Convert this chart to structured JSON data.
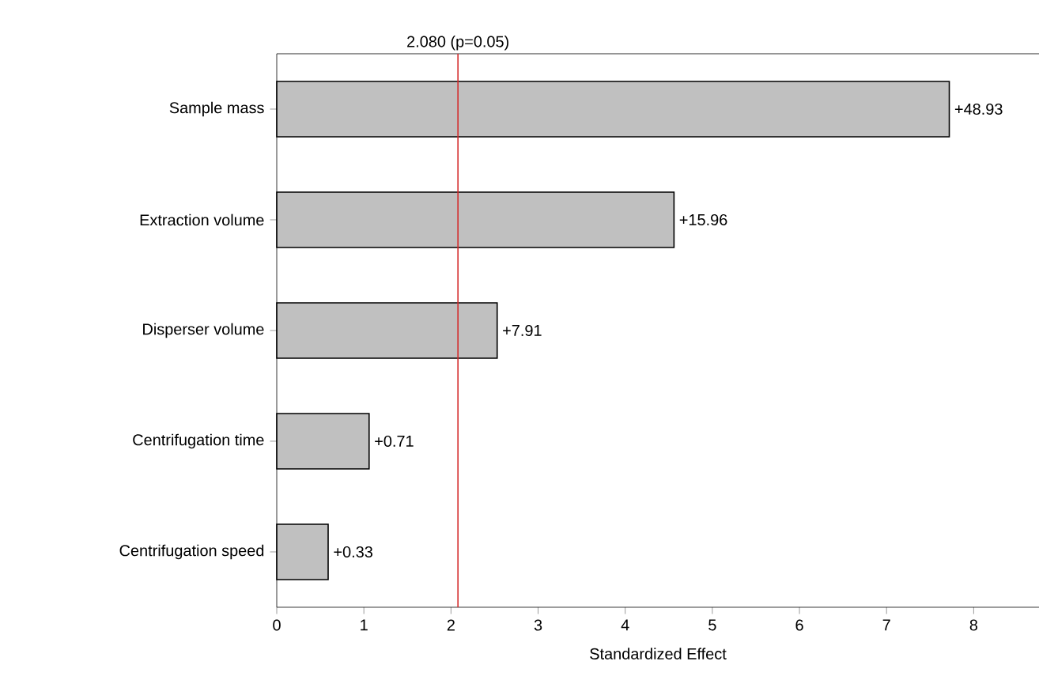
{
  "chart_data": {
    "type": "bar",
    "orientation": "horizontal",
    "xlabel": "Standardized Effect",
    "categories": [
      "Sample mass",
      "Extraction volume",
      "Disperser volume",
      "Centrifugation time",
      "Centrifugation speed"
    ],
    "values": [
      7.72,
      4.56,
      2.53,
      1.06,
      0.59
    ],
    "annotations": [
      "+48.93",
      "+15.96",
      "+7.91",
      "+0.71",
      "+0.33"
    ],
    "color": "#c0c0c0",
    "xlim": [
      0,
      8.75
    ],
    "xticks": [
      0,
      1,
      2,
      3,
      4,
      5,
      6,
      7,
      8
    ],
    "ref_lines": [
      {
        "axis": "x",
        "value": 2.08,
        "label": "2.080 (p=0.05)",
        "color": "#d42a2a"
      }
    ]
  }
}
